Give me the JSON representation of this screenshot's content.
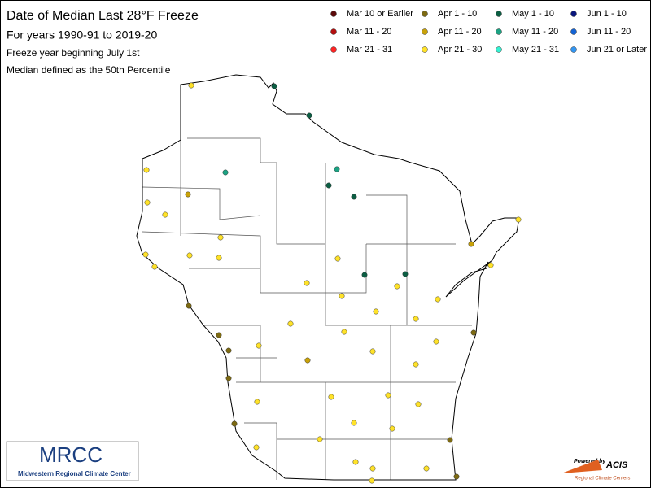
{
  "header": {
    "title": "Date of Median Last 28°F Freeze",
    "subtitle": "For years 1990-91 to 2019-20",
    "notes": [
      "Freeze year beginning July 1st",
      "Median defined as the 50th Percentile"
    ]
  },
  "legend": [
    {
      "label": "Mar 10 or Earlier",
      "color": "#5c0a0a"
    },
    {
      "label": "Mar 11 - 20",
      "color": "#b40f0f"
    },
    {
      "label": "Mar 21 - 31",
      "color": "#ff2424"
    },
    {
      "label": "Apr 1 - 10",
      "color": "#7d6a12"
    },
    {
      "label": "Apr 11 - 20",
      "color": "#c9a208"
    },
    {
      "label": "Apr 21 - 30",
      "color": "#ffe229"
    },
    {
      "label": "May 1 - 10",
      "color": "#0b5e43"
    },
    {
      "label": "May 11 - 20",
      "color": "#1ca383"
    },
    {
      "label": "May 21 - 31",
      "color": "#33f2d2"
    },
    {
      "label": "Jun 1 - 10",
      "color": "#0a177d"
    },
    {
      "label": "Jun 11 - 20",
      "color": "#1463d4"
    },
    {
      "label": "Jun 21 or Later",
      "color": "#3396f2"
    }
  ],
  "logos": {
    "mrcc": "MRCC",
    "mrcc_name": "Midwestern Regional Climate Center",
    "acis_powered": "Powered by",
    "acis": "ACIS",
    "acis_sub": "Regional Climate Centers"
  }
}
